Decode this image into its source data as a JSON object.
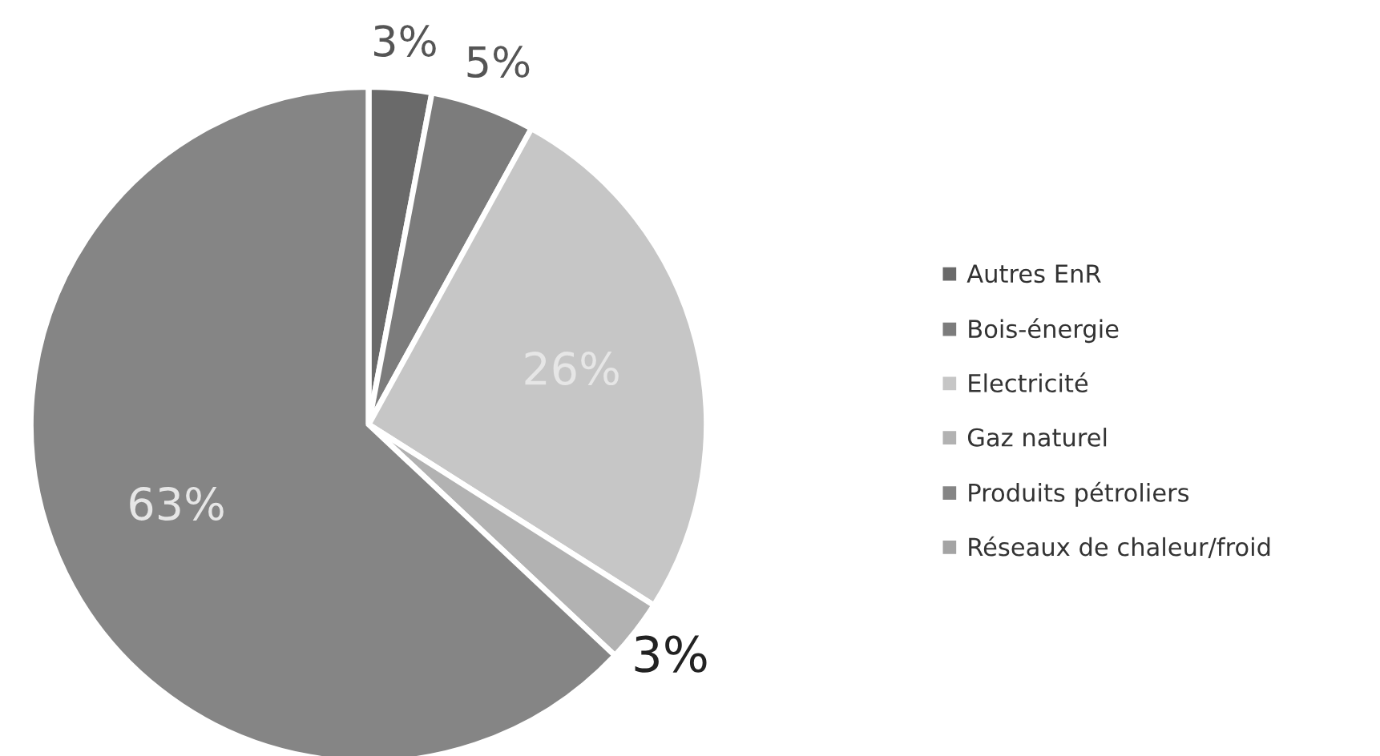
{
  "chart_data": {
    "type": "pie",
    "categories": [
      "Autres EnR",
      "Bois-énergie",
      "Electricité",
      "Gaz naturel",
      "Produits pétroliers",
      "Réseaux de chaleur/froid"
    ],
    "values": [
      3,
      5,
      26,
      3,
      63,
      0
    ],
    "value_labels": [
      "3%",
      "5%",
      "26%",
      "3%",
      "63%",
      null
    ],
    "colors": [
      "#6a6a6a",
      "#7c7c7c",
      "#c6c6c6",
      "#b2b2b2",
      "#858585",
      "#a4a4a4"
    ],
    "legend": "right"
  }
}
